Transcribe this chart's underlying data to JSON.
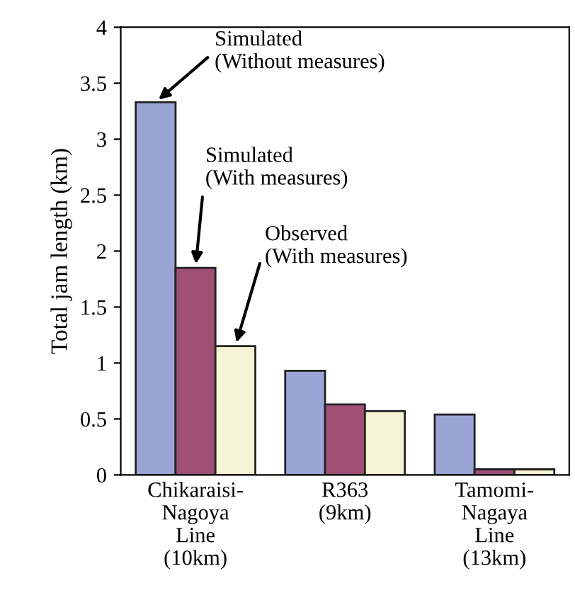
{
  "chart_data": {
    "type": "bar",
    "ylabel": "Total jam length (km)",
    "categories": [
      "Chikaraisi-\nNagoya\nLine\n(10km)",
      "R363\n(9km)",
      "Tamomi-\nNagaya\nLine\n(13km)"
    ],
    "series": [
      {
        "name": "Simulated\n(Without measures)",
        "color": "#9aa5d5",
        "values": [
          3.33,
          0.93,
          0.54
        ]
      },
      {
        "name": "Simulated\n(With measures)",
        "color": "#a05075",
        "values": [
          1.85,
          0.63,
          0.05
        ]
      },
      {
        "name": "Observed\n(With measures)",
        "color": "#f5f3d3",
        "values": [
          1.15,
          0.57,
          0.05
        ]
      }
    ],
    "ylim": [
      0,
      4
    ],
    "yticks": [
      0,
      0.5,
      1,
      1.5,
      2,
      2.5,
      3,
      3.5,
      4
    ],
    "grid": false,
    "legend": false
  }
}
